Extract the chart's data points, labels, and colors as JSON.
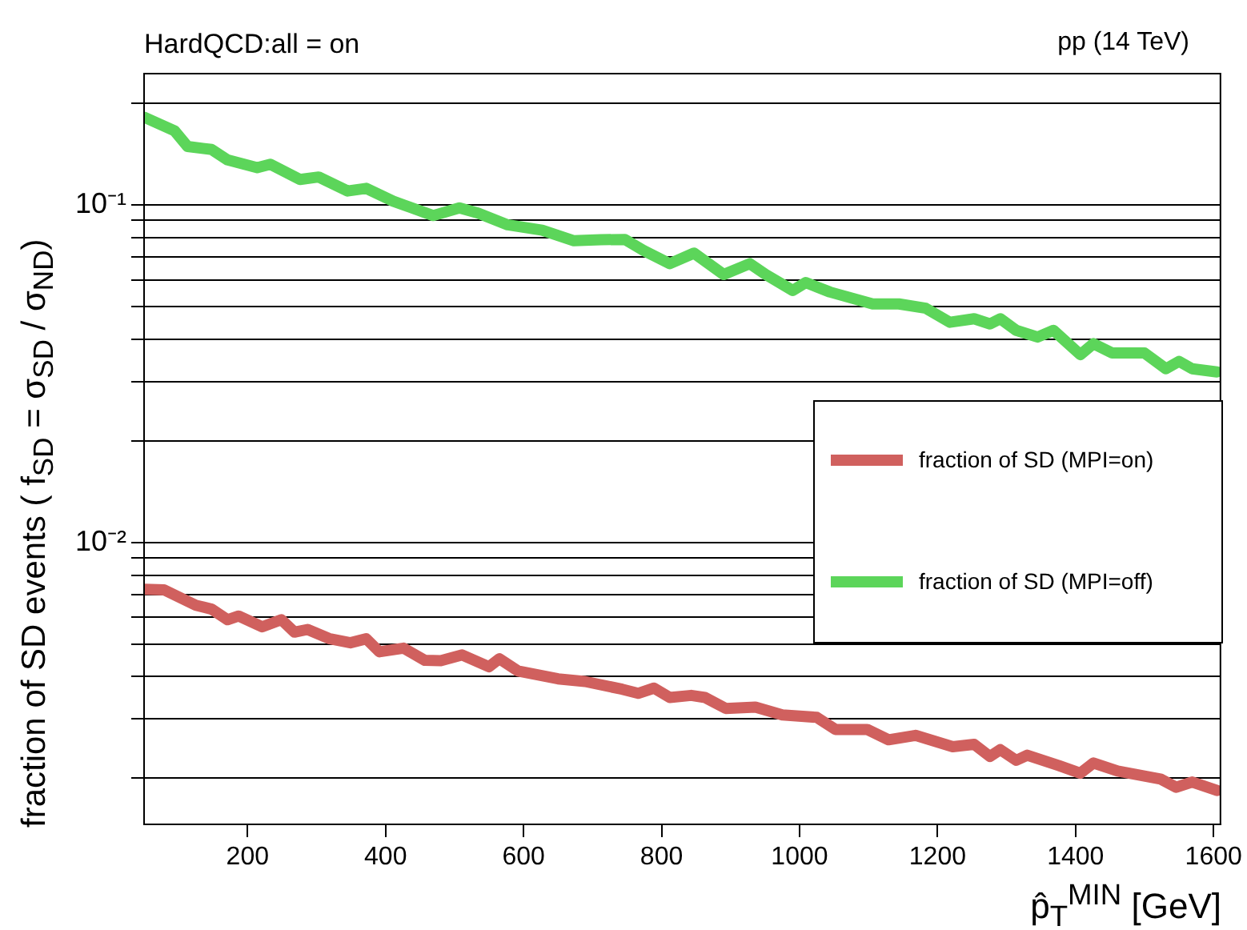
{
  "chart_data": {
    "type": "line",
    "title": "HardQCD:all = on",
    "annotations": [
      "pp (14 TeV)"
    ],
    "xlabel": "p̂$_{T}$$^{MIN}$ [GeV]",
    "ylabel": "fraction of SD events ( f$_{SD}$ = σ$_{SD}$ / σ$_{ND}$)",
    "log": "y",
    "grid": "y",
    "legend": "right",
    "line_style": "solid",
    "marker": "none",
    "xlim": [
      50,
      1610
    ],
    "xticks": [
      200,
      400,
      600,
      800,
      1000,
      1200,
      1400,
      1600
    ],
    "ylim": [
      0.00146,
      0.245
    ],
    "yticks": [
      {
        "value": 0.002,
        "label": null
      },
      {
        "value": 0.003,
        "label": null
      },
      {
        "value": 0.004,
        "label": null
      },
      {
        "value": 0.005,
        "label": null
      },
      {
        "value": 0.006,
        "label": null
      },
      {
        "value": 0.007,
        "label": null
      },
      {
        "value": 0.008,
        "label": null
      },
      {
        "value": 0.009,
        "label": null
      },
      {
        "value": 0.01,
        "label": "10⁻²"
      },
      {
        "value": 0.02,
        "label": null
      },
      {
        "value": 0.03,
        "label": null
      },
      {
        "value": 0.04,
        "label": null
      },
      {
        "value": 0.05,
        "label": null
      },
      {
        "value": 0.06,
        "label": null
      },
      {
        "value": 0.07,
        "label": null
      },
      {
        "value": 0.08,
        "label": null
      },
      {
        "value": 0.09,
        "label": null
      },
      {
        "value": 0.1,
        "label": "10⁻¹"
      },
      {
        "value": 0.2,
        "label": null
      }
    ],
    "series": [
      {
        "name": "fraction of SD (MPI=on)",
        "color": "#d0605e",
        "x": [
          50,
          79,
          125,
          148,
          171,
          187,
          221,
          249,
          268,
          287,
          318,
          349,
          372,
          391,
          426,
          457,
          480,
          511,
          550,
          565,
          592,
          650,
          689,
          743,
          766,
          789,
          812,
          843,
          863,
          893,
          936,
          975,
          1025,
          1052,
          1098,
          1129,
          1168,
          1222,
          1253,
          1276,
          1291,
          1314,
          1330,
          1376,
          1407,
          1426,
          1461,
          1523,
          1546,
          1569,
          1605
        ],
        "values": [
          0.00726,
          0.00723,
          0.00651,
          0.00634,
          0.0059,
          0.00605,
          0.00562,
          0.0059,
          0.00542,
          0.00552,
          0.00519,
          0.00504,
          0.00518,
          0.00474,
          0.00486,
          0.00447,
          0.00446,
          0.00464,
          0.00428,
          0.00452,
          0.00416,
          0.00394,
          0.00387,
          0.00367,
          0.00357,
          0.0037,
          0.00347,
          0.00352,
          0.00347,
          0.00322,
          0.00325,
          0.00308,
          0.00303,
          0.00279,
          0.00279,
          0.0026,
          0.00268,
          0.00248,
          0.00252,
          0.00232,
          0.00243,
          0.00226,
          0.00234,
          0.00218,
          0.00207,
          0.00222,
          0.0021,
          0.00199,
          0.00188,
          0.00195,
          0.00184
        ]
      },
      {
        "name": "fraction of SD (MPI=off)",
        "color": "#5cd55a",
        "x": [
          50,
          94,
          113,
          148,
          171,
          214,
          233,
          276,
          303,
          345,
          372,
          411,
          469,
          507,
          534,
          577,
          627,
          673,
          712,
          747,
          774,
          812,
          847,
          890,
          928,
          951,
          990,
          1009,
          1044,
          1106,
          1144,
          1183,
          1218,
          1253,
          1276,
          1291,
          1314,
          1345,
          1368,
          1407,
          1426,
          1453,
          1500,
          1531,
          1550,
          1569,
          1605
        ],
        "values": [
          0.182,
          0.166,
          0.149,
          0.146,
          0.136,
          0.129,
          0.132,
          0.119,
          0.121,
          0.11,
          0.112,
          0.1026,
          0.093,
          0.098,
          0.0946,
          0.0873,
          0.0842,
          0.0783,
          0.0789,
          0.079,
          0.0733,
          0.067,
          0.072,
          0.0622,
          0.067,
          0.0622,
          0.0558,
          0.0589,
          0.0552,
          0.0509,
          0.0509,
          0.0494,
          0.0449,
          0.046,
          0.0444,
          0.046,
          0.0425,
          0.0406,
          0.0425,
          0.036,
          0.0388,
          0.0364,
          0.0364,
          0.0327,
          0.0344,
          0.0327,
          0.032
        ]
      }
    ]
  }
}
